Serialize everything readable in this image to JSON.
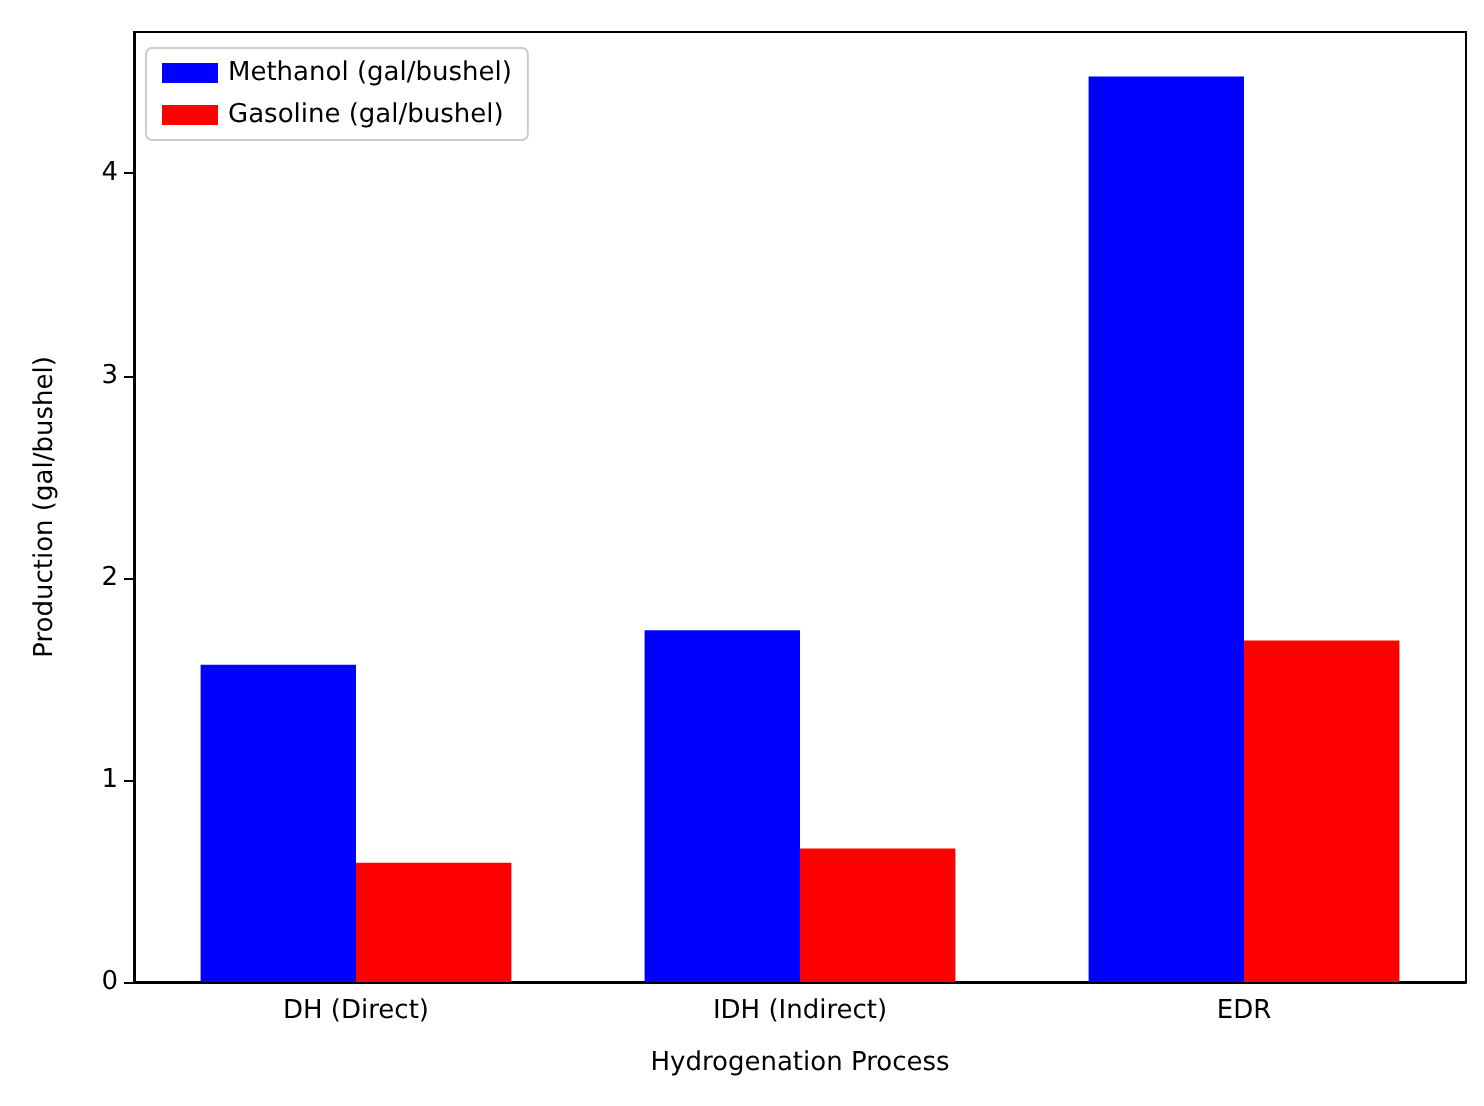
{
  "chart_data": {
    "type": "bar",
    "xlabel": "Hydrogenation Process",
    "ylabel": "Production (gal/bushel)",
    "categories": [
      "DH (Direct)",
      "IDH (Indirect)",
      "EDR"
    ],
    "series": [
      {
        "name": "Methanol (gal/bushel)",
        "color": "#0000ff",
        "values": [
          1.57,
          1.74,
          4.48
        ]
      },
      {
        "name": "Gasoline (gal/bushel)",
        "color": "#ff0000",
        "values": [
          0.59,
          0.66,
          1.69
        ]
      }
    ],
    "ylim": [
      0,
      4.7
    ],
    "yticks": [
      0,
      1,
      2,
      3,
      4
    ],
    "legend": "top left",
    "grid": false
  }
}
